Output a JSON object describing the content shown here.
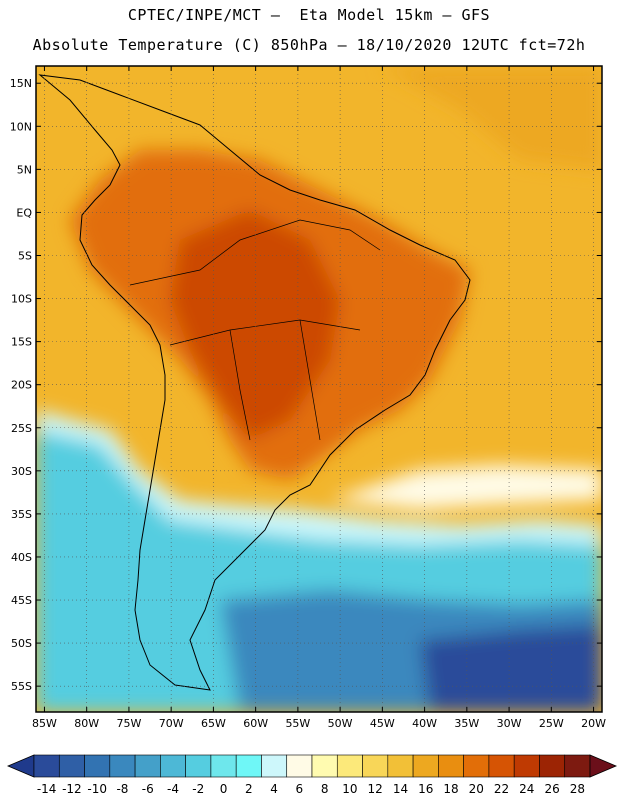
{
  "header": {
    "line1": "CPTEC/INPE/MCT –  Eta Model 15km – GFS",
    "line2": "Absolute Temperature (C) 850hPa – 18/10/2020 12UTC fct=72h"
  },
  "map": {
    "lat_labels": [
      "15N",
      "10N",
      "5N",
      "EQ",
      "5S",
      "10S",
      "15S",
      "20S",
      "25S",
      "30S",
      "35S",
      "40S",
      "45S",
      "50S",
      "55S"
    ],
    "lat_values": [
      15,
      10,
      5,
      0,
      -5,
      -10,
      -15,
      -20,
      -25,
      -30,
      -35,
      -40,
      -45,
      -50,
      -55
    ],
    "lon_labels": [
      "85W",
      "80W",
      "75W",
      "70W",
      "65W",
      "60W",
      "55W",
      "50W",
      "45W",
      "40W",
      "35W",
      "30W",
      "25W",
      "20W"
    ],
    "lon_values": [
      -85,
      -80,
      -75,
      -70,
      -65,
      -60,
      -55,
      -50,
      -45,
      -40,
      -35,
      -30,
      -25,
      -20
    ],
    "lat_range": [
      -58,
      17
    ],
    "lon_range": [
      -86,
      -19
    ]
  },
  "colorbar": {
    "labels": [
      "-14",
      "-12",
      "-10",
      "-8",
      "-6",
      "-4",
      "-2",
      "0",
      "2",
      "4",
      "6",
      "8",
      "10",
      "12",
      "14",
      "16",
      "18",
      "20",
      "22",
      "24",
      "26",
      "28"
    ],
    "colors": [
      "#2a4b9a",
      "#2f5fa6",
      "#3273b2",
      "#3a88be",
      "#44a0c9",
      "#4db8d6",
      "#55cde0",
      "#6ee7ec",
      "#6ff7f7",
      "#cdf7fb",
      "#fffbe6",
      "#fffbb0",
      "#fce97a",
      "#f8d658",
      "#f2c037",
      "#eda820",
      "#e98e10",
      "#e26e08",
      "#d65404",
      "#bf3a02",
      "#9c2404",
      "#7d1a10"
    ],
    "left_arrow_color": "#1f3a8c",
    "right_arrow_color": "#6b0f1a"
  }
}
